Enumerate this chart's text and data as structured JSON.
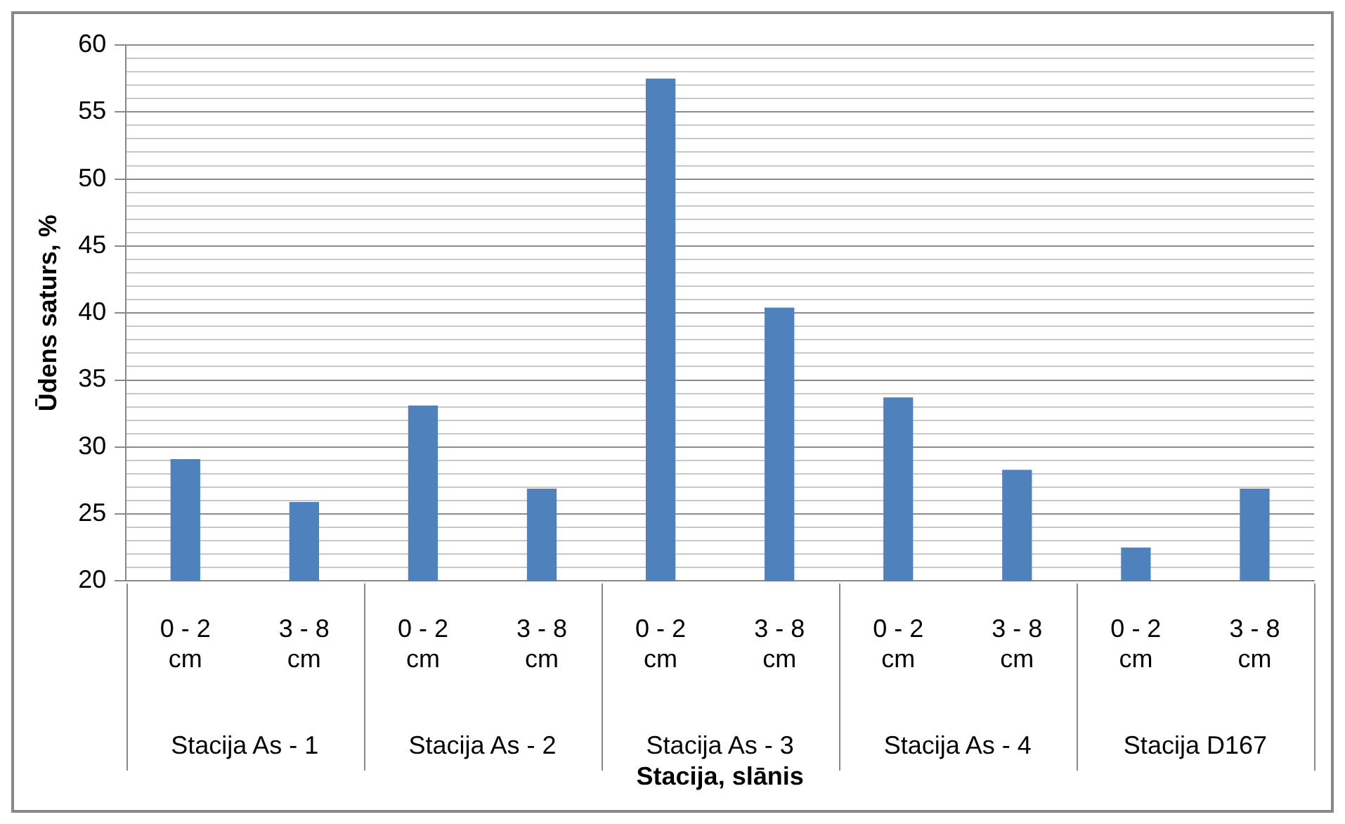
{
  "chart_data": {
    "type": "bar",
    "xlabel": "Stacija, slānis",
    "ylabel": "Ūdens saturs, %",
    "categories": [
      "0 - 2 cm",
      "3 - 8 cm",
      "0 - 2 cm",
      "3 - 8 cm",
      "0 - 2 cm",
      "3 - 8 cm",
      "0 - 2 cm",
      "3 - 8 cm",
      "0 - 2 cm",
      "3 - 8 cm"
    ],
    "values": [
      29.1,
      25.9,
      33.1,
      26.9,
      57.5,
      40.4,
      33.7,
      28.3,
      22.5,
      26.9
    ],
    "color": "#4f81bd",
    "annotations": [
      "Stacija As - 1",
      "Stacija As - 2",
      "Stacija As - 3",
      "Stacija As - 4",
      "Stacija D167"
    ],
    "ylim": [
      20,
      60
    ],
    "yticks": [
      20,
      {
        "value": 21,
        "label": null
      },
      {
        "value": 22,
        "label": null
      },
      {
        "value": 23,
        "label": null
      },
      {
        "value": 24,
        "label": null
      },
      25,
      {
        "value": 26,
        "label": null
      },
      {
        "value": 27,
        "label": null
      },
      {
        "value": 28,
        "label": null
      },
      {
        "value": 29,
        "label": null
      },
      30,
      {
        "value": 31,
        "label": null
      },
      {
        "value": 32,
        "label": null
      },
      {
        "value": 33,
        "label": null
      },
      {
        "value": 34,
        "label": null
      },
      35,
      {
        "value": 36,
        "label": null
      },
      {
        "value": 37,
        "label": null
      },
      {
        "value": 38,
        "label": null
      },
      {
        "value": 39,
        "label": null
      },
      40,
      {
        "value": 41,
        "label": null
      },
      {
        "value": 42,
        "label": null
      },
      {
        "value": 43,
        "label": null
      },
      {
        "value": 44,
        "label": null
      },
      45,
      {
        "value": 46,
        "label": null
      },
      {
        "value": 47,
        "label": null
      },
      {
        "value": 48,
        "label": null
      },
      {
        "value": 49,
        "label": null
      },
      50,
      {
        "value": 51,
        "label": null
      },
      {
        "value": 52,
        "label": null
      },
      {
        "value": 53,
        "label": null
      },
      {
        "value": 54,
        "label": null
      },
      55,
      {
        "value": 56,
        "label": null
      },
      {
        "value": 57,
        "label": null
      },
      {
        "value": 58,
        "label": null
      },
      {
        "value": 59,
        "label": null
      },
      60
    ],
    "grid": true,
    "legend": false
  }
}
